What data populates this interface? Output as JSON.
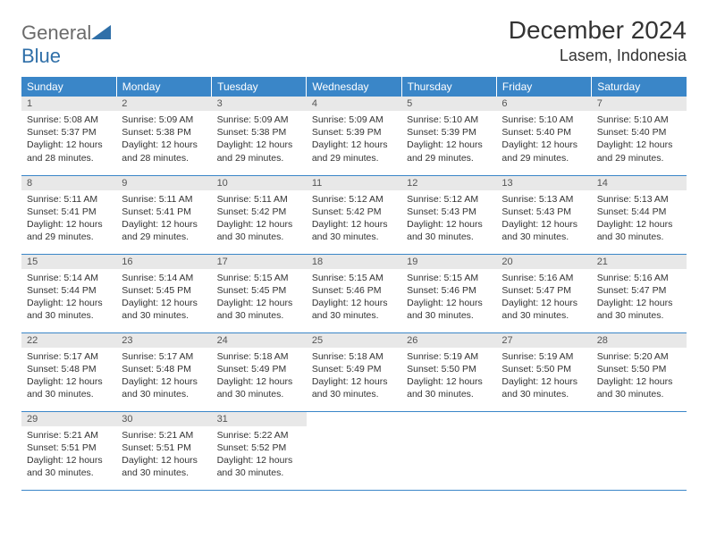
{
  "logo": {
    "word1": "General",
    "word2": "Blue",
    "shape_color": "#2f6fa8",
    "text1_color": "#6b6b6b"
  },
  "title": "December 2024",
  "location": "Lasem, Indonesia",
  "colors": {
    "header_bg": "#3a86c8",
    "header_fg": "#ffffff",
    "daynum_bg": "#e8e8e8",
    "daynum_fg": "#555555",
    "cell_border": "#3a86c8",
    "body_text": "#333333",
    "page_bg": "#ffffff"
  },
  "typography": {
    "title_fontsize_pt": 21,
    "location_fontsize_pt": 13,
    "header_fontsize_pt": 9,
    "cell_fontsize_pt": 8
  },
  "weekdays": [
    "Sunday",
    "Monday",
    "Tuesday",
    "Wednesday",
    "Thursday",
    "Friday",
    "Saturday"
  ],
  "days": [
    {
      "n": 1,
      "sr": "5:08 AM",
      "ss": "5:37 PM",
      "dl": "12 hours and 28 minutes."
    },
    {
      "n": 2,
      "sr": "5:09 AM",
      "ss": "5:38 PM",
      "dl": "12 hours and 28 minutes."
    },
    {
      "n": 3,
      "sr": "5:09 AM",
      "ss": "5:38 PM",
      "dl": "12 hours and 29 minutes."
    },
    {
      "n": 4,
      "sr": "5:09 AM",
      "ss": "5:39 PM",
      "dl": "12 hours and 29 minutes."
    },
    {
      "n": 5,
      "sr": "5:10 AM",
      "ss": "5:39 PM",
      "dl": "12 hours and 29 minutes."
    },
    {
      "n": 6,
      "sr": "5:10 AM",
      "ss": "5:40 PM",
      "dl": "12 hours and 29 minutes."
    },
    {
      "n": 7,
      "sr": "5:10 AM",
      "ss": "5:40 PM",
      "dl": "12 hours and 29 minutes."
    },
    {
      "n": 8,
      "sr": "5:11 AM",
      "ss": "5:41 PM",
      "dl": "12 hours and 29 minutes."
    },
    {
      "n": 9,
      "sr": "5:11 AM",
      "ss": "5:41 PM",
      "dl": "12 hours and 29 minutes."
    },
    {
      "n": 10,
      "sr": "5:11 AM",
      "ss": "5:42 PM",
      "dl": "12 hours and 30 minutes."
    },
    {
      "n": 11,
      "sr": "5:12 AM",
      "ss": "5:42 PM",
      "dl": "12 hours and 30 minutes."
    },
    {
      "n": 12,
      "sr": "5:12 AM",
      "ss": "5:43 PM",
      "dl": "12 hours and 30 minutes."
    },
    {
      "n": 13,
      "sr": "5:13 AM",
      "ss": "5:43 PM",
      "dl": "12 hours and 30 minutes."
    },
    {
      "n": 14,
      "sr": "5:13 AM",
      "ss": "5:44 PM",
      "dl": "12 hours and 30 minutes."
    },
    {
      "n": 15,
      "sr": "5:14 AM",
      "ss": "5:44 PM",
      "dl": "12 hours and 30 minutes."
    },
    {
      "n": 16,
      "sr": "5:14 AM",
      "ss": "5:45 PM",
      "dl": "12 hours and 30 minutes."
    },
    {
      "n": 17,
      "sr": "5:15 AM",
      "ss": "5:45 PM",
      "dl": "12 hours and 30 minutes."
    },
    {
      "n": 18,
      "sr": "5:15 AM",
      "ss": "5:46 PM",
      "dl": "12 hours and 30 minutes."
    },
    {
      "n": 19,
      "sr": "5:15 AM",
      "ss": "5:46 PM",
      "dl": "12 hours and 30 minutes."
    },
    {
      "n": 20,
      "sr": "5:16 AM",
      "ss": "5:47 PM",
      "dl": "12 hours and 30 minutes."
    },
    {
      "n": 21,
      "sr": "5:16 AM",
      "ss": "5:47 PM",
      "dl": "12 hours and 30 minutes."
    },
    {
      "n": 22,
      "sr": "5:17 AM",
      "ss": "5:48 PM",
      "dl": "12 hours and 30 minutes."
    },
    {
      "n": 23,
      "sr": "5:17 AM",
      "ss": "5:48 PM",
      "dl": "12 hours and 30 minutes."
    },
    {
      "n": 24,
      "sr": "5:18 AM",
      "ss": "5:49 PM",
      "dl": "12 hours and 30 minutes."
    },
    {
      "n": 25,
      "sr": "5:18 AM",
      "ss": "5:49 PM",
      "dl": "12 hours and 30 minutes."
    },
    {
      "n": 26,
      "sr": "5:19 AM",
      "ss": "5:50 PM",
      "dl": "12 hours and 30 minutes."
    },
    {
      "n": 27,
      "sr": "5:19 AM",
      "ss": "5:50 PM",
      "dl": "12 hours and 30 minutes."
    },
    {
      "n": 28,
      "sr": "5:20 AM",
      "ss": "5:50 PM",
      "dl": "12 hours and 30 minutes."
    },
    {
      "n": 29,
      "sr": "5:21 AM",
      "ss": "5:51 PM",
      "dl": "12 hours and 30 minutes."
    },
    {
      "n": 30,
      "sr": "5:21 AM",
      "ss": "5:51 PM",
      "dl": "12 hours and 30 minutes."
    },
    {
      "n": 31,
      "sr": "5:22 AM",
      "ss": "5:52 PM",
      "dl": "12 hours and 30 minutes."
    }
  ],
  "labels": {
    "sunrise": "Sunrise:",
    "sunset": "Sunset:",
    "daylight": "Daylight:"
  },
  "layout": {
    "first_weekday_index": 0,
    "rows": 5,
    "cols": 7
  }
}
